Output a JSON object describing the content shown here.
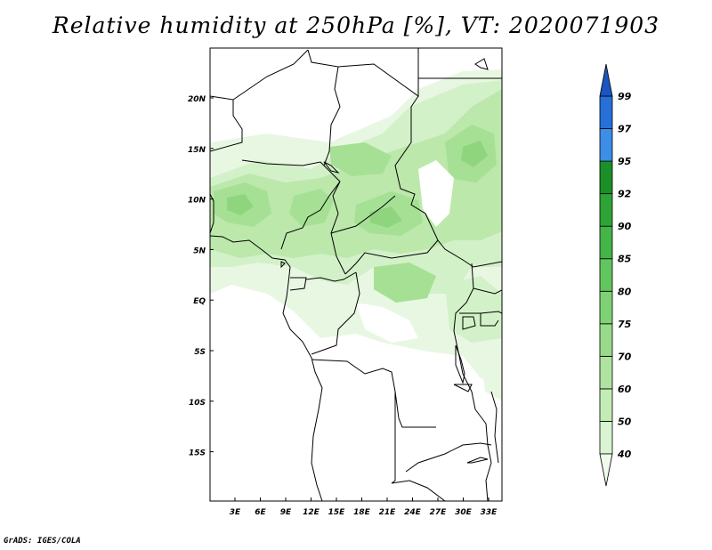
{
  "title": "Relative humidity at 250hPa [%], VT: 2020071903",
  "credit": "GrADS: IGES/COLA",
  "map": {
    "lat_labels": [
      "20N",
      "15N",
      "10N",
      "5N",
      "EQ",
      "5S",
      "10S",
      "15S"
    ],
    "lon_labels": [
      "3E",
      "6E",
      "9E",
      "12E",
      "15E",
      "18E",
      "21E",
      "24E",
      "27E",
      "30E",
      "33E"
    ]
  },
  "colorbar": {
    "levels": [
      "40",
      "50",
      "60",
      "70",
      "75",
      "80",
      "85",
      "90",
      "92",
      "95",
      "97",
      "99"
    ],
    "colors": [
      "#f0fbec",
      "#d9f4d0",
      "#c3ecb4",
      "#aee3a0",
      "#98da8a",
      "#7ed175",
      "#62c65e",
      "#45b548",
      "#2ea338",
      "#1c8f28",
      "#3c8ee6",
      "#2670d8",
      "#1a55c0"
    ]
  }
}
